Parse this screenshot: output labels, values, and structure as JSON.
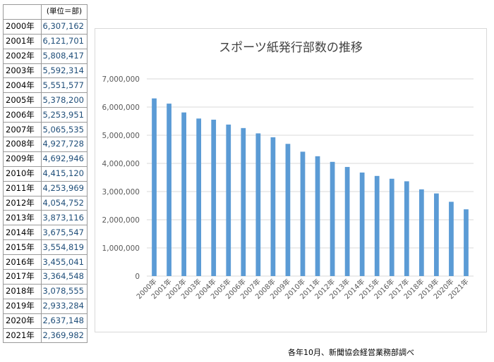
{
  "table": {
    "unit_label": "(単位＝部)",
    "rows": [
      {
        "year": "2000年",
        "value": "6,307,162"
      },
      {
        "year": "2001年",
        "value": "6,121,701"
      },
      {
        "year": "2002年",
        "value": "5,808,417"
      },
      {
        "year": "2003年",
        "value": "5,592,314"
      },
      {
        "year": "2004年",
        "value": "5,551,577"
      },
      {
        "year": "2005年",
        "value": "5,378,200"
      },
      {
        "year": "2006年",
        "value": "5,253,951"
      },
      {
        "year": "2007年",
        "value": "5,065,535"
      },
      {
        "year": "2008年",
        "value": "4,927,728"
      },
      {
        "year": "2009年",
        "value": "4,692,946"
      },
      {
        "year": "2010年",
        "value": "4,415,120"
      },
      {
        "year": "2011年",
        "value": "4,253,969"
      },
      {
        "year": "2012年",
        "value": "4,054,752"
      },
      {
        "year": "2013年",
        "value": "3,873,116"
      },
      {
        "year": "2014年",
        "value": "3,675,547"
      },
      {
        "year": "2015年",
        "value": "3,554,819"
      },
      {
        "year": "2016年",
        "value": "3,455,041"
      },
      {
        "year": "2017年",
        "value": "3,364,548"
      },
      {
        "year": "2018年",
        "value": "3,078,555"
      },
      {
        "year": "2019年",
        "value": "2,933,284"
      },
      {
        "year": "2020年",
        "value": "2,637,148"
      },
      {
        "year": "2021年",
        "value": "2,369,982"
      }
    ]
  },
  "source_note": "各年10月、新聞協会経営業務部調べ",
  "colors": {
    "bar": "#5b9bd5",
    "grid": "#d9d9d9",
    "axis_text": "#595959",
    "title": "#404040"
  },
  "chart_data": {
    "type": "bar",
    "title": "スポーツ紙発行部数の推移",
    "xlabel": "",
    "ylabel": "",
    "categories": [
      "2000年",
      "2001年",
      "2002年",
      "2003年",
      "2004年",
      "2005年",
      "2006年",
      "2007年",
      "2008年",
      "2009年",
      "2010年",
      "2011年",
      "2012年",
      "2013年",
      "2014年",
      "2015年",
      "2016年",
      "2017年",
      "2018年",
      "2019年",
      "2020年",
      "2021年"
    ],
    "values": [
      6307162,
      6121701,
      5808417,
      5592314,
      5551577,
      5378200,
      5253951,
      5065535,
      4927728,
      4692946,
      4415120,
      4253969,
      4054752,
      3873116,
      3675547,
      3554819,
      3455041,
      3364548,
      3078555,
      2933284,
      2637148,
      2369982
    ],
    "ylim": [
      0,
      7000000
    ],
    "yticks": [
      0,
      1000000,
      2000000,
      3000000,
      4000000,
      5000000,
      6000000,
      7000000
    ],
    "ytick_labels": [
      "0",
      "1,000,000",
      "2,000,000",
      "3,000,000",
      "4,000,000",
      "5,000,000",
      "6,000,000",
      "7,000,000"
    ],
    "grid": true,
    "legend": "none"
  }
}
